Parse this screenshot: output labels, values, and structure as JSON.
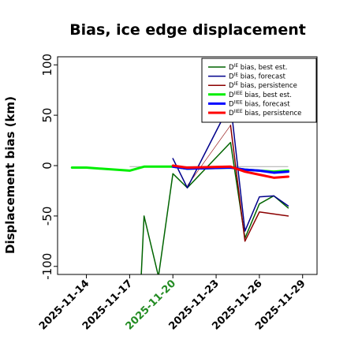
{
  "chart_data": {
    "type": "line",
    "title": "Bias, ice edge displacement",
    "ylabel": "Displacement bias (km)",
    "xlabel": "",
    "x_range": [
      "2025-11-12",
      "2025-11-30"
    ],
    "ylim": [
      -108,
      108
    ],
    "yticks": [
      -100,
      -50,
      0,
      50,
      100
    ],
    "xticks": [
      "2025-11-14",
      "2025-11-17",
      "2025-11-20",
      "2025-11-23",
      "2025-11-26",
      "2025-11-29"
    ],
    "highlight_xtick": "2025-11-20",
    "highlight_color": "#228b22",
    "grid": false,
    "legend_position": "top-right",
    "reference_line": {
      "y": -1,
      "from": "2025-11-17",
      "to": "2025-11-28",
      "color": "#aaaaaa"
    },
    "series": [
      {
        "name": "D^IE bias, best est.",
        "color": "#006400",
        "width": 1.5,
        "points": [
          [
            "2025-11-17.7",
            -140
          ],
          [
            "2025-11-18",
            -50
          ],
          [
            "2025-11-19",
            -110
          ],
          [
            "2025-11-20",
            -8
          ],
          [
            "2025-11-21",
            -22
          ],
          [
            "2025-11-24",
            23
          ],
          [
            "2025-11-25",
            -72
          ],
          [
            "2025-11-26",
            -38
          ],
          [
            "2025-11-27",
            -30
          ],
          [
            "2025-11-28",
            -42
          ]
        ]
      },
      {
        "name": "D^IE bias, forecast",
        "color": "#00008b",
        "width": 1.5,
        "points": [
          [
            "2025-11-20",
            7
          ],
          [
            "2025-11-21",
            -22
          ],
          [
            "2025-11-24",
            62
          ],
          [
            "2025-11-25",
            -65
          ],
          [
            "2025-11-26",
            -31
          ],
          [
            "2025-11-27",
            -30
          ],
          [
            "2025-11-28",
            -40
          ]
        ]
      },
      {
        "name": "D^IE bias, persistence",
        "color": "#8b0000",
        "width": 1.5,
        "points": [
          [
            "2025-11-24",
            40
          ],
          [
            "2025-11-25",
            -75
          ],
          [
            "2025-11-26",
            -46
          ],
          [
            "2025-11-28",
            -50
          ]
        ]
      },
      {
        "name": "D^IIEE bias, best est.",
        "color": "#00ee00",
        "width": 3,
        "points": [
          [
            "2025-11-13",
            -2
          ],
          [
            "2025-11-14",
            -2
          ],
          [
            "2025-11-17",
            -5
          ],
          [
            "2025-11-18",
            -1
          ],
          [
            "2025-11-19",
            -1
          ],
          [
            "2025-11-20",
            -1
          ],
          [
            "2025-11-21",
            -3
          ],
          [
            "2025-11-24",
            -2
          ],
          [
            "2025-11-25",
            -4
          ],
          [
            "2025-11-26",
            -5
          ],
          [
            "2025-11-27",
            -6
          ],
          [
            "2025-11-28",
            -5
          ]
        ]
      },
      {
        "name": "D^IIEE bias, forecast",
        "color": "#0000ff",
        "width": 3,
        "points": [
          [
            "2025-11-20",
            -1
          ],
          [
            "2025-11-21",
            -3
          ],
          [
            "2025-11-24",
            -2
          ],
          [
            "2025-11-25",
            -4
          ],
          [
            "2025-11-26",
            -5
          ],
          [
            "2025-11-27",
            -7
          ],
          [
            "2025-11-28",
            -6
          ]
        ]
      },
      {
        "name": "D^IIEE bias, persistence",
        "color": "#ff0000",
        "width": 3,
        "points": [
          [
            "2025-11-20",
            0
          ],
          [
            "2025-11-21",
            -2
          ],
          [
            "2025-11-24",
            -1
          ],
          [
            "2025-11-25",
            -6
          ],
          [
            "2025-11-26",
            -9
          ],
          [
            "2025-11-27",
            -12
          ],
          [
            "2025-11-28",
            -11
          ]
        ]
      }
    ],
    "thin_connectors": [
      {
        "color": "#00008b",
        "points": [
          [
            "2025-11-21",
            -22
          ],
          [
            "2025-11-24",
            62
          ]
        ]
      },
      {
        "color": "#8b0000",
        "points": [
          [
            "2025-11-21",
            -20
          ],
          [
            "2025-11-24",
            40
          ]
        ]
      },
      {
        "color": "#006400",
        "points": [
          [
            "2025-11-21",
            -22
          ],
          [
            "2025-11-24",
            23
          ]
        ]
      }
    ]
  }
}
